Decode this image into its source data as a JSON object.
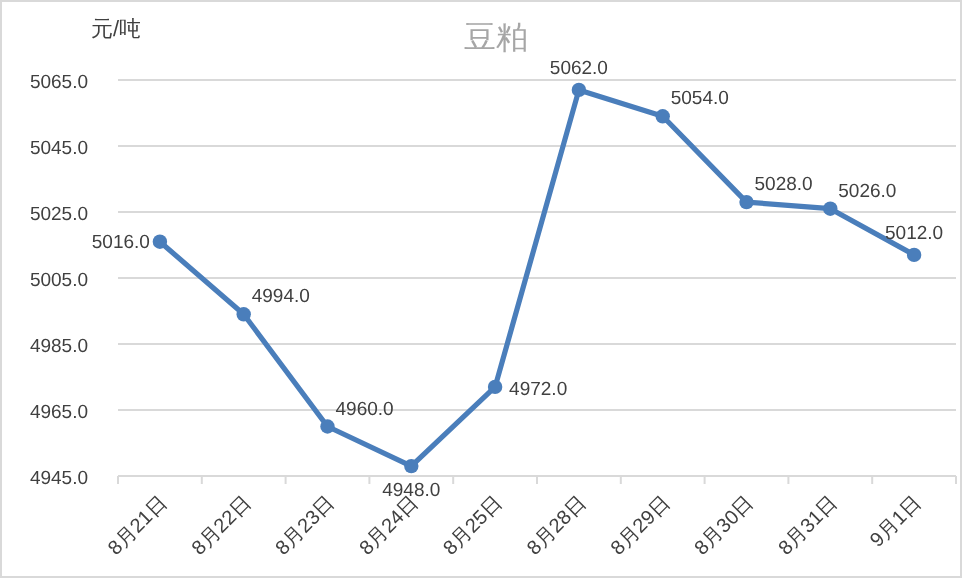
{
  "chart_data": {
    "type": "line",
    "title": "豆粕",
    "ylabel": "元/吨",
    "categories": [
      "8月21日",
      "8月22日",
      "8月23日",
      "8月24日",
      "8月25日",
      "8月28日",
      "8月29日",
      "8月30日",
      "8月31日",
      "9月1日"
    ],
    "series": [
      {
        "color": "#4a7ebb",
        "values": [
          5016.0,
          4994.0,
          4960.0,
          4948.0,
          4972.0,
          5062.0,
          5054.0,
          5028.0,
          5026.0,
          5012.0
        ],
        "value_labels": [
          "5016.0",
          "4994.0",
          "4960.0",
          "4948.0",
          "4972.0",
          "5062.0",
          "5054.0",
          "5028.0",
          "5026.0",
          "5012.0"
        ]
      }
    ],
    "ylim": [
      4945,
      5065
    ],
    "yticks": [
      {
        "value": 4945,
        "label": "4945.0"
      },
      {
        "value": 4965,
        "label": "4965.0"
      },
      {
        "value": 4985,
        "label": "4985.0"
      },
      {
        "value": 5005,
        "label": "5005.0"
      },
      {
        "value": 5025,
        "label": "5025.0"
      },
      {
        "value": 5045,
        "label": "5045.0"
      },
      {
        "value": 5065,
        "label": "5065.0"
      }
    ],
    "grid": "y",
    "marker": "circle",
    "line_style": "solid"
  }
}
